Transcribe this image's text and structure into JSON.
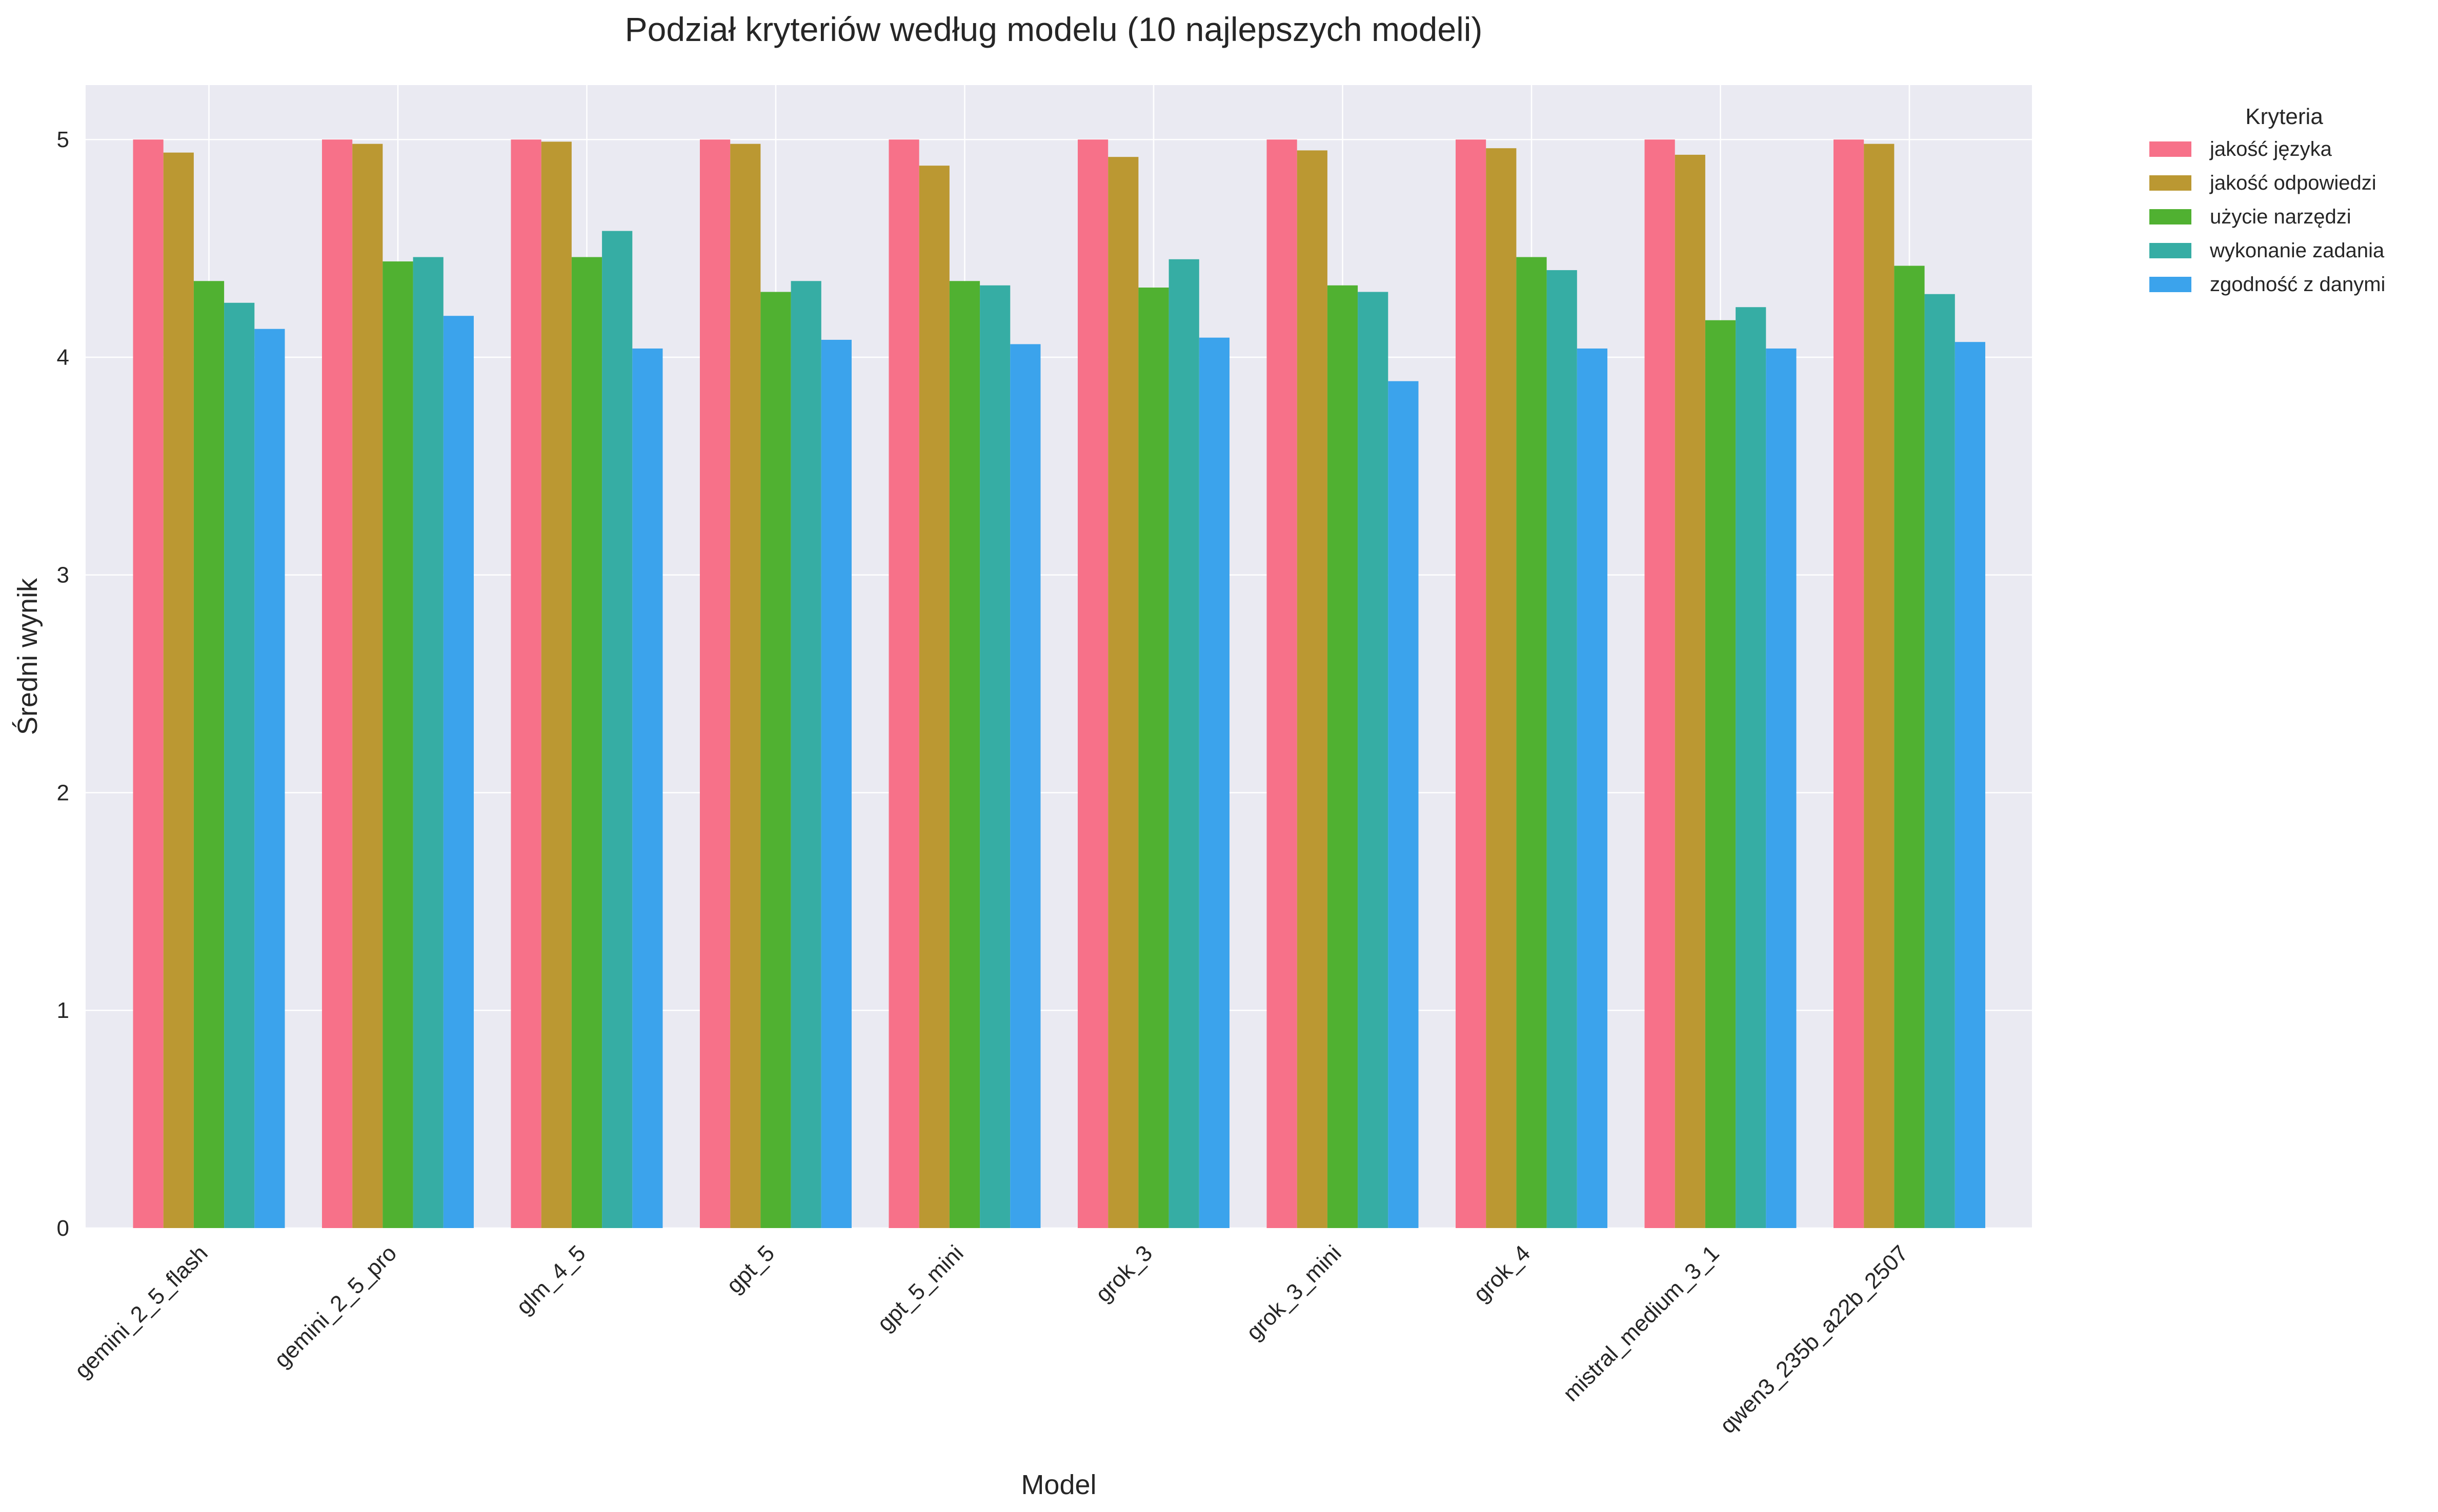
{
  "chart_data": {
    "type": "bar",
    "title": "Podział kryteriów według modelu (10 najlepszych modeli)",
    "xlabel": "Model",
    "ylabel": "Średni wynik",
    "ylim": [
      0,
      5.25
    ],
    "yticks": [
      0,
      1,
      2,
      3,
      4,
      5
    ],
    "grid": true,
    "legend_title": "Kryteria",
    "legend_position": "outside-top-right",
    "categories": [
      "gemini_2_5_flash",
      "gemini_2_5_pro",
      "glm_4_5",
      "gpt_5",
      "gpt_5_mini",
      "grok_3",
      "grok_3_mini",
      "grok_4",
      "mistral_medium_3_1",
      "qwen3_235b_a22b_2507"
    ],
    "series": [
      {
        "name": "jakość języka",
        "color": "#f77189",
        "values": [
          5.0,
          5.0,
          5.0,
          5.0,
          5.0,
          5.0,
          5.0,
          5.0,
          5.0,
          5.0
        ]
      },
      {
        "name": "jakość odpowiedzi",
        "color": "#bb9832",
        "values": [
          4.94,
          4.98,
          4.99,
          4.98,
          4.88,
          4.92,
          4.95,
          4.96,
          4.93,
          4.98
        ]
      },
      {
        "name": "użycie narzędzi",
        "color": "#50b131",
        "values": [
          4.35,
          4.44,
          4.46,
          4.3,
          4.35,
          4.32,
          4.33,
          4.46,
          4.17,
          4.42
        ]
      },
      {
        "name": "wykonanie zadania",
        "color": "#36ada4",
        "values": [
          4.25,
          4.46,
          4.58,
          4.35,
          4.33,
          4.45,
          4.3,
          4.4,
          4.23,
          4.29
        ]
      },
      {
        "name": "zgodność z danymi",
        "color": "#3ba3ec",
        "values": [
          4.13,
          4.19,
          4.04,
          4.08,
          4.06,
          4.09,
          3.89,
          4.04,
          4.04,
          4.07
        ]
      }
    ]
  }
}
